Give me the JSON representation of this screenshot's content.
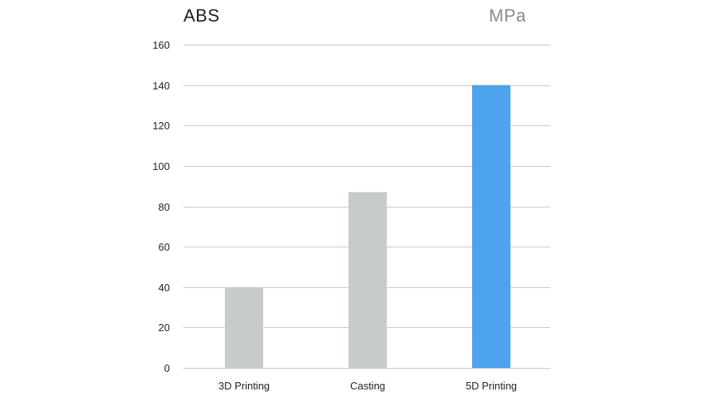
{
  "chart_data": {
    "type": "bar",
    "title": "ABS",
    "unit_label": "MPa",
    "categories": [
      "3D Printing",
      "Casting",
      "5D Printing"
    ],
    "values": [
      40,
      87,
      140
    ],
    "bar_colors": [
      "#c6cbcc",
      "#c6cbcc",
      "#4da3ee"
    ],
    "ylim": [
      0,
      160
    ],
    "yticks": [
      0,
      20,
      40,
      60,
      80,
      100,
      120,
      140,
      160
    ],
    "grid": true,
    "legend": false
  },
  "colors": {
    "default_bar": "#c6cbcc",
    "highlight_bar": "#4da3ee",
    "grid": "#c9c9c9"
  }
}
